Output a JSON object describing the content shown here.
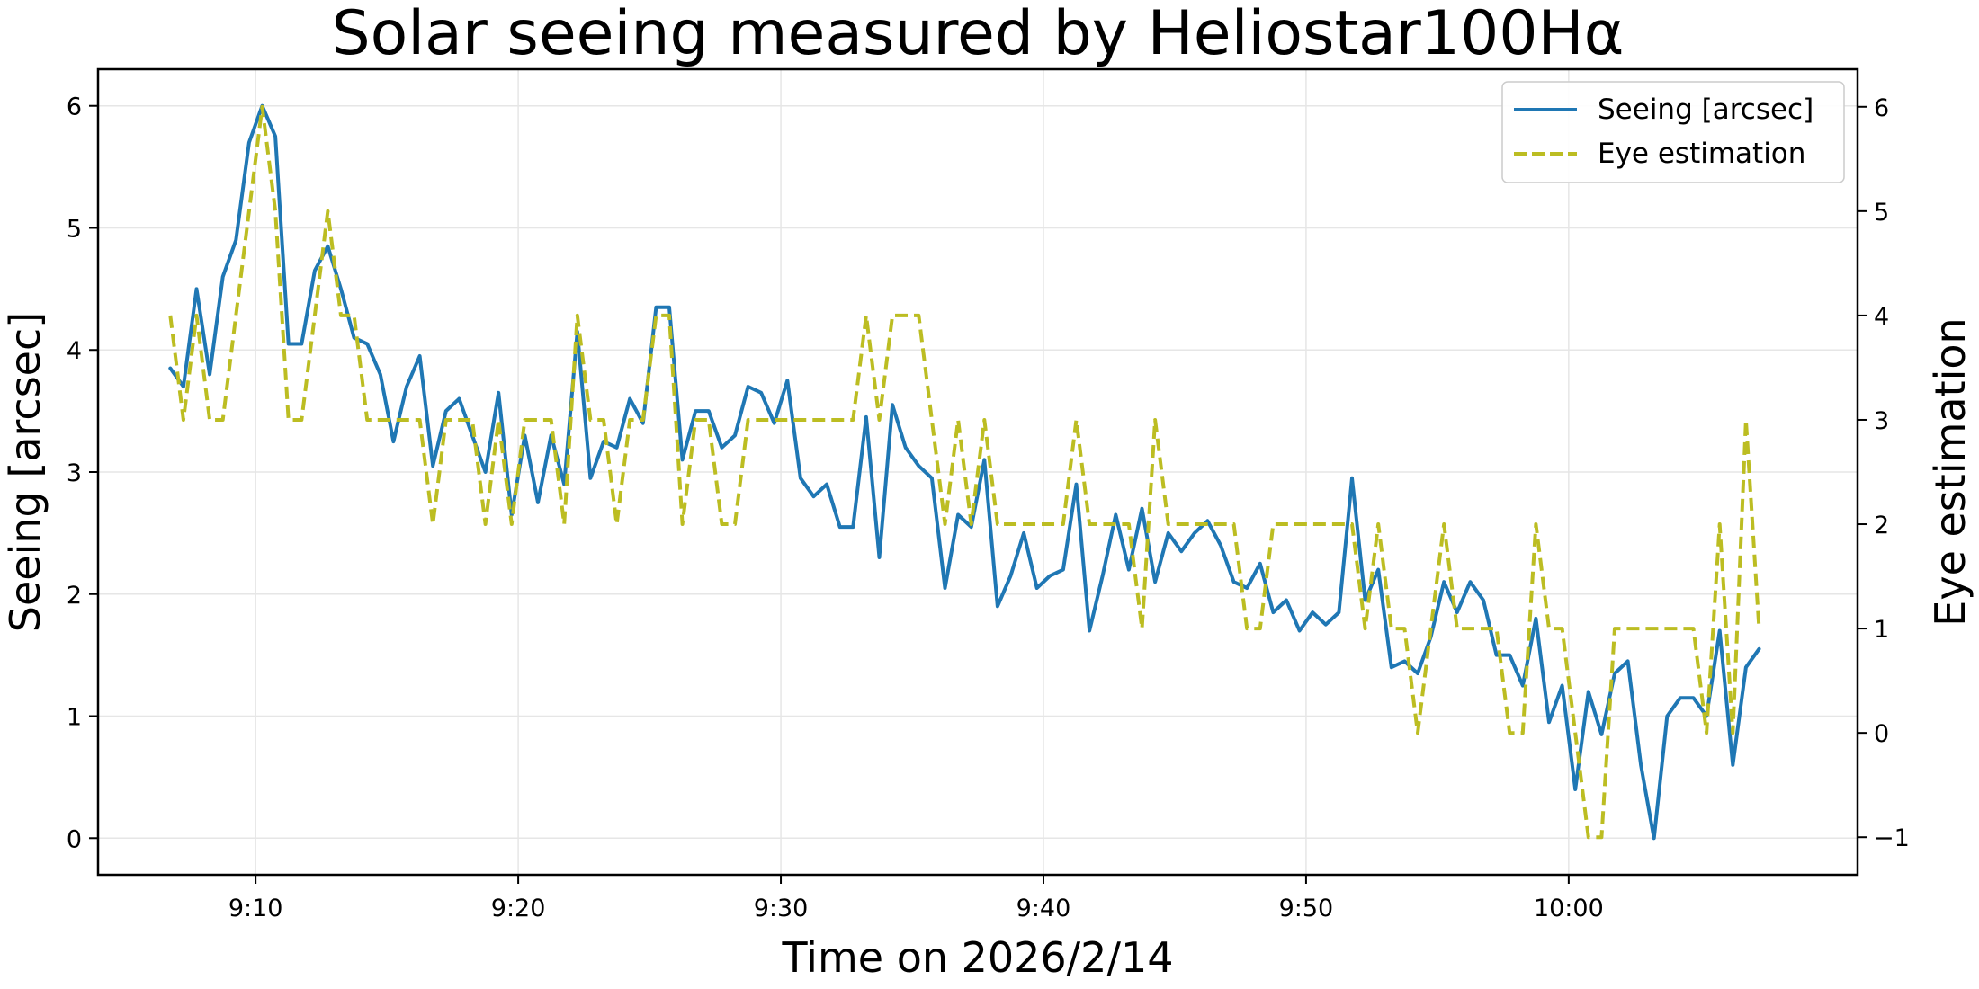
{
  "chart_data": {
    "type": "line",
    "title": "Solar seeing measured by Heliostar100Hα",
    "xlabel": "Time on 2026/2/14",
    "ylabel": "Seeing [arcsec]",
    "y2label": "Eye estimation",
    "x_unit": "time",
    "x_ticks": [
      "9:10",
      "9:20",
      "9:30",
      "9:40",
      "9:50",
      "10:00"
    ],
    "x_range": [
      "9:04",
      "10:11"
    ],
    "ylim": [
      -0.3,
      6.3
    ],
    "y_ticks": [
      0,
      1,
      2,
      3,
      4,
      5,
      6
    ],
    "y2lim": [
      -1.36,
      6.36
    ],
    "y2_ticks": [
      -1,
      0,
      1,
      2,
      3,
      4,
      5,
      6
    ],
    "y2_tick_labels": [
      "−1",
      "0",
      "1",
      "2",
      "3",
      "4",
      "5",
      "6"
    ],
    "grid": true,
    "legend_position": "top-right",
    "series": [
      {
        "name": "Seeing [arcsec]",
        "axis": "left",
        "color": "#1f77b4",
        "style": "solid",
        "x": [
          "9:06:45",
          "9:07:15",
          "9:07:45",
          "9:08:15",
          "9:08:45",
          "9:09:15",
          "9:09:45",
          "9:10:15",
          "9:10:45",
          "9:11:15",
          "9:11:45",
          "9:12:15",
          "9:12:45",
          "9:13:15",
          "9:13:45",
          "9:14:15",
          "9:14:45",
          "9:15:15",
          "9:15:45",
          "9:16:15",
          "9:16:45",
          "9:17:15",
          "9:17:45",
          "9:18:15",
          "9:18:45",
          "9:19:15",
          "9:19:45",
          "9:20:15",
          "9:20:45",
          "9:21:15",
          "9:21:45",
          "9:22:15",
          "9:22:45",
          "9:23:15",
          "9:23:45",
          "9:24:15",
          "9:24:45",
          "9:25:15",
          "9:25:45",
          "9:26:15",
          "9:26:45",
          "9:27:15",
          "9:27:45",
          "9:28:15",
          "9:28:45",
          "9:29:15",
          "9:29:45",
          "9:30:15",
          "9:30:45",
          "9:31:15",
          "9:31:45",
          "9:32:15",
          "9:32:45",
          "9:33:15",
          "9:33:45",
          "9:34:15",
          "9:34:45",
          "9:35:15",
          "9:35:45",
          "9:36:15",
          "9:36:45",
          "9:37:15",
          "9:37:45",
          "9:38:15",
          "9:38:45",
          "9:39:15",
          "9:39:45",
          "9:40:15",
          "9:40:45",
          "9:41:15",
          "9:41:45",
          "9:42:15",
          "9:42:45",
          "9:43:15",
          "9:43:45",
          "9:44:15",
          "9:44:45",
          "9:45:15",
          "9:45:45",
          "9:46:15",
          "9:46:45",
          "9:47:15",
          "9:47:45",
          "9:48:15",
          "9:48:45",
          "9:49:15",
          "9:49:45",
          "9:50:15",
          "9:50:45",
          "9:51:15",
          "9:51:45",
          "9:52:15",
          "9:52:45",
          "9:53:15",
          "9:53:45",
          "9:54:15",
          "9:54:45",
          "9:55:15",
          "9:55:45",
          "9:56:15",
          "9:56:45",
          "9:57:15",
          "9:57:45",
          "9:58:15",
          "9:58:45",
          "9:59:15",
          "9:59:45",
          "10:00:15",
          "10:00:45",
          "10:01:15",
          "10:01:45",
          "10:02:15",
          "10:02:45",
          "10:03:15",
          "10:03:45",
          "10:04:15",
          "10:04:45",
          "10:05:15",
          "10:05:45",
          "10:06:15",
          "10:06:45",
          "10:07:15"
        ],
        "values": [
          3.85,
          3.7,
          4.5,
          3.8,
          4.6,
          4.9,
          5.7,
          6.0,
          5.75,
          4.05,
          4.05,
          4.65,
          4.85,
          4.5,
          4.1,
          4.05,
          3.8,
          3.25,
          3.7,
          3.95,
          3.05,
          3.5,
          3.6,
          3.3,
          3.0,
          3.65,
          2.65,
          3.3,
          2.75,
          3.3,
          2.9,
          4.15,
          2.95,
          3.25,
          3.2,
          3.6,
          3.4,
          4.35,
          4.35,
          3.1,
          3.5,
          3.5,
          3.2,
          3.3,
          3.7,
          3.65,
          3.4,
          3.75,
          2.95,
          2.8,
          2.9,
          2.55,
          2.55,
          3.45,
          2.3,
          3.55,
          3.2,
          3.05,
          2.95,
          2.05,
          2.65,
          2.55,
          3.1,
          1.9,
          2.15,
          2.5,
          2.05,
          2.15,
          2.2,
          2.9,
          1.7,
          2.15,
          2.65,
          2.2,
          2.7,
          2.1,
          2.5,
          2.35,
          2.5,
          2.6,
          2.4,
          2.1,
          2.05,
          2.25,
          1.85,
          1.95,
          1.7,
          1.85,
          1.75,
          1.85,
          2.95,
          1.95,
          2.2,
          1.4,
          1.45,
          1.35,
          1.65,
          2.1,
          1.85,
          2.1,
          1.95,
          1.5,
          1.5,
          1.25,
          1.8,
          0.95,
          1.25,
          0.4,
          1.2,
          0.85,
          1.35,
          1.45,
          0.6,
          0.0,
          1.0,
          1.15,
          1.15,
          1.0,
          1.7,
          0.6,
          1.4,
          1.55
        ]
      },
      {
        "name": "Eye estimation",
        "axis": "right",
        "color": "#bcbd22",
        "style": "dashed",
        "x": [
          "9:06:45",
          "9:07:15",
          "9:07:45",
          "9:08:15",
          "9:08:45",
          "9:09:15",
          "9:09:45",
          "9:10:15",
          "9:10:45",
          "9:11:15",
          "9:11:45",
          "9:12:15",
          "9:12:45",
          "9:13:15",
          "9:13:45",
          "9:14:15",
          "9:14:45",
          "9:15:15",
          "9:15:45",
          "9:16:15",
          "9:16:45",
          "9:17:15",
          "9:17:45",
          "9:18:15",
          "9:18:45",
          "9:19:15",
          "9:19:45",
          "9:20:15",
          "9:20:45",
          "9:21:15",
          "9:21:45",
          "9:22:15",
          "9:22:45",
          "9:23:15",
          "9:23:45",
          "9:24:15",
          "9:24:45",
          "9:25:15",
          "9:25:45",
          "9:26:15",
          "9:26:45",
          "9:27:15",
          "9:27:45",
          "9:28:15",
          "9:28:45",
          "9:29:15",
          "9:29:45",
          "9:30:15",
          "9:30:45",
          "9:31:15",
          "9:31:45",
          "9:32:15",
          "9:32:45",
          "9:33:15",
          "9:33:45",
          "9:34:15",
          "9:34:45",
          "9:35:15",
          "9:35:45",
          "9:36:15",
          "9:36:45",
          "9:37:15",
          "9:37:45",
          "9:38:15",
          "9:38:45",
          "9:39:15",
          "9:39:45",
          "9:40:15",
          "9:40:45",
          "9:41:15",
          "9:41:45",
          "9:42:15",
          "9:42:45",
          "9:43:15",
          "9:43:45",
          "9:44:15",
          "9:44:45",
          "9:45:15",
          "9:45:45",
          "9:46:15",
          "9:46:45",
          "9:47:15",
          "9:47:45",
          "9:48:15",
          "9:48:45",
          "9:49:15",
          "9:49:45",
          "9:50:15",
          "9:50:45",
          "9:51:15",
          "9:51:45",
          "9:52:15",
          "9:52:45",
          "9:53:15",
          "9:53:45",
          "9:54:15",
          "9:54:45",
          "9:55:15",
          "9:55:45",
          "9:56:15",
          "9:56:45",
          "9:57:15",
          "9:57:45",
          "9:58:15",
          "9:58:45",
          "9:59:15",
          "9:59:45",
          "10:00:15",
          "10:00:45",
          "10:01:15",
          "10:01:45",
          "10:02:15",
          "10:02:45",
          "10:03:15",
          "10:03:45",
          "10:04:15",
          "10:04:45",
          "10:05:15",
          "10:05:45",
          "10:06:15",
          "10:06:45",
          "10:07:15"
        ],
        "values": [
          4,
          3,
          4,
          3,
          3,
          4,
          5,
          6,
          5,
          3,
          3,
          4,
          5,
          4,
          4,
          3,
          3,
          3,
          3,
          3,
          2,
          3,
          3,
          3,
          2,
          3,
          2,
          3,
          3,
          3,
          2,
          4,
          3,
          3,
          2,
          3,
          3,
          4,
          4,
          2,
          3,
          3,
          2,
          2,
          3,
          3,
          3,
          3,
          3,
          3,
          3,
          3,
          3,
          4,
          3,
          4,
          4,
          4,
          3,
          2,
          3,
          2,
          3,
          2,
          2,
          2,
          2,
          2,
          2,
          3,
          2,
          2,
          2,
          2,
          1,
          3,
          2,
          2,
          2,
          2,
          2,
          2,
          1,
          1,
          2,
          2,
          2,
          2,
          2,
          2,
          2,
          1,
          2,
          1,
          1,
          0,
          1,
          2,
          1,
          1,
          1,
          1,
          0,
          0,
          2,
          1,
          1,
          0,
          -1,
          -1,
          1,
          1,
          1,
          1,
          1,
          1,
          1,
          0,
          2,
          0,
          3,
          1
        ]
      }
    ]
  }
}
